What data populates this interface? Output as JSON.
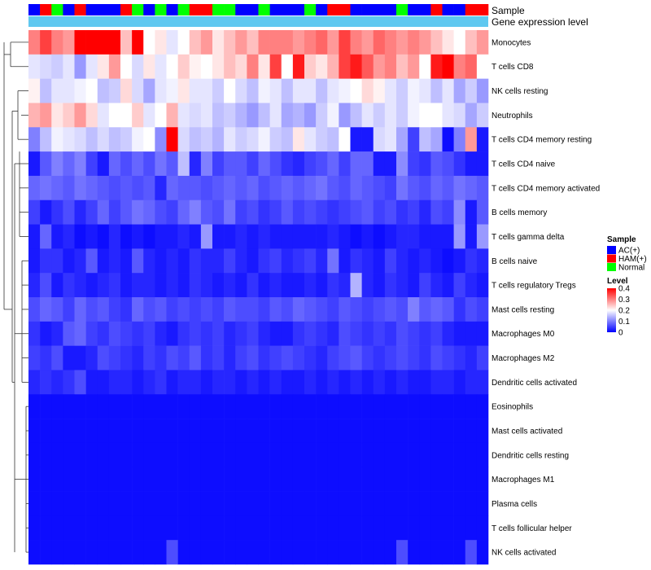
{
  "chart_data": {
    "type": "heatmap",
    "annotation_labels": {
      "sample": "Sample",
      "gene_expression": "Gene expression level"
    },
    "rows": [
      "Monocytes",
      "T cells CD8",
      "NK cells resting",
      "Neutrophils",
      "T cells CD4 memory resting",
      "T cells CD4 naive",
      "T cells CD4 memory activated",
      "B cells memory",
      "T cells gamma delta",
      "B cells naive",
      "T cells regulatory  Tregs",
      "Mast cells resting",
      "Macrophages M0",
      "Macrophages M2",
      "Dendritic cells activated",
      "Eosinophils",
      "Mast cells activated",
      "Dendritic cells resting",
      "Macrophages M1",
      "Plasma cells",
      "T cells follicular helper",
      "NK cells activated"
    ],
    "sample_groups": [
      "AC",
      "HAM",
      "Normal",
      "AC",
      "HAM",
      "AC",
      "AC",
      "AC",
      "HAM",
      "Normal",
      "AC",
      "Normal",
      "AC",
      "Normal",
      "HAM",
      "HAM",
      "Normal",
      "Normal",
      "AC",
      "AC",
      "Normal",
      "AC",
      "AC",
      "AC",
      "Normal",
      "AC",
      "HAM",
      "HAM",
      "AC",
      "AC",
      "AC",
      "AC",
      "Normal",
      "AC",
      "AC",
      "HAM",
      "AC",
      "AC",
      "HAM",
      "HAM"
    ],
    "values": [
      [
        0.3,
        0.35,
        0.3,
        0.28,
        0.4,
        0.4,
        0.4,
        0.4,
        0.25,
        0.4,
        0.2,
        0.22,
        0.18,
        0.2,
        0.25,
        0.28,
        0.22,
        0.25,
        0.28,
        0.25,
        0.3,
        0.3,
        0.3,
        0.28,
        0.3,
        0.32,
        0.28,
        0.35,
        0.3,
        0.28,
        0.32,
        0.3,
        0.28,
        0.3,
        0.28,
        0.25,
        0.22,
        0.2,
        0.25,
        0.28
      ],
      [
        0.18,
        0.17,
        0.16,
        0.18,
        0.12,
        0.18,
        0.22,
        0.28,
        0.2,
        0.17,
        0.22,
        0.18,
        0.2,
        0.24,
        0.21,
        0.2,
        0.22,
        0.25,
        0.23,
        0.3,
        0.22,
        0.35,
        0.2,
        0.38,
        0.24,
        0.22,
        0.26,
        0.35,
        0.38,
        0.33,
        0.28,
        0.3,
        0.25,
        0.28,
        0.2,
        0.38,
        0.4,
        0.3,
        0.32,
        0.2
      ],
      [
        0.21,
        0.15,
        0.18,
        0.18,
        0.19,
        0.2,
        0.15,
        0.16,
        0.23,
        0.17,
        0.13,
        0.18,
        0.19,
        0.22,
        0.18,
        0.18,
        0.16,
        0.2,
        0.17,
        0.15,
        0.19,
        0.18,
        0.15,
        0.18,
        0.18,
        0.15,
        0.18,
        0.19,
        0.2,
        0.23,
        0.21,
        0.18,
        0.16,
        0.19,
        0.18,
        0.15,
        0.18,
        0.13,
        0.16,
        0.12
      ],
      [
        0.26,
        0.28,
        0.22,
        0.24,
        0.28,
        0.23,
        0.18,
        0.2,
        0.2,
        0.24,
        0.18,
        0.2,
        0.26,
        0.18,
        0.17,
        0.18,
        0.15,
        0.16,
        0.14,
        0.12,
        0.15,
        0.18,
        0.13,
        0.14,
        0.12,
        0.16,
        0.19,
        0.12,
        0.15,
        0.18,
        0.16,
        0.18,
        0.16,
        0.19,
        0.2,
        0.2,
        0.18,
        0.17,
        0.13,
        0.16
      ],
      [
        0.1,
        0.15,
        0.19,
        0.18,
        0.17,
        0.15,
        0.17,
        0.15,
        0.16,
        0.19,
        0.2,
        0.11,
        0.4,
        0.17,
        0.15,
        0.16,
        0.14,
        0.18,
        0.16,
        0.17,
        0.19,
        0.16,
        0.15,
        0.22,
        0.18,
        0.16,
        0.15,
        0.2,
        0.02,
        0.02,
        0.17,
        0.18,
        0.13,
        0.05,
        0.15,
        0.13,
        0.01,
        0.1,
        0.28,
        0.02
      ],
      [
        0.02,
        0.07,
        0.1,
        0.08,
        0.1,
        0.05,
        0.02,
        0.08,
        0.06,
        0.08,
        0.06,
        0.09,
        0.07,
        0.15,
        0.03,
        0.1,
        0.05,
        0.07,
        0.07,
        0.05,
        0.08,
        0.06,
        0.04,
        0.03,
        0.05,
        0.06,
        0.08,
        0.05,
        0.08,
        0.08,
        0.02,
        0.02,
        0.11,
        0.05,
        0.04,
        0.07,
        0.06,
        0.04,
        0.02,
        0.02
      ],
      [
        0.08,
        0.09,
        0.08,
        0.07,
        0.09,
        0.08,
        0.07,
        0.06,
        0.07,
        0.06,
        0.07,
        0.03,
        0.08,
        0.07,
        0.07,
        0.06,
        0.07,
        0.08,
        0.07,
        0.08,
        0.06,
        0.07,
        0.08,
        0.07,
        0.08,
        0.09,
        0.07,
        0.06,
        0.08,
        0.07,
        0.06,
        0.05,
        0.09,
        0.07,
        0.06,
        0.08,
        0.07,
        0.09,
        0.08,
        0.07
      ],
      [
        0.05,
        0.02,
        0.04,
        0.06,
        0.03,
        0.05,
        0.08,
        0.05,
        0.07,
        0.09,
        0.08,
        0.06,
        0.05,
        0.08,
        0.1,
        0.07,
        0.06,
        0.09,
        0.05,
        0.06,
        0.04,
        0.05,
        0.07,
        0.05,
        0.06,
        0.05,
        0.04,
        0.05,
        0.06,
        0.07,
        0.05,
        0.06,
        0.04,
        0.05,
        0.03,
        0.06,
        0.05,
        0.11,
        0.02,
        0.07
      ],
      [
        0.02,
        0.08,
        0.02,
        0.03,
        0.01,
        0.02,
        0.01,
        0.03,
        0.01,
        0.02,
        0.01,
        0.02,
        0.02,
        0.03,
        0.02,
        0.12,
        0.02,
        0.02,
        0.03,
        0.02,
        0.03,
        0.02,
        0.02,
        0.02,
        0.02,
        0.02,
        0.03,
        0.02,
        0.01,
        0.02,
        0.01,
        0.02,
        0.03,
        0.03,
        0.02,
        0.02,
        0.02,
        0.12,
        0.02,
        0.12
      ],
      [
        0.02,
        0.04,
        0.04,
        0.02,
        0.03,
        0.07,
        0.02,
        0.03,
        0.02,
        0.07,
        0.03,
        0.02,
        0.03,
        0.02,
        0.04,
        0.03,
        0.03,
        0.05,
        0.03,
        0.02,
        0.04,
        0.05,
        0.03,
        0.04,
        0.05,
        0.03,
        0.09,
        0.02,
        0.04,
        0.03,
        0.02,
        0.05,
        0.03,
        0.02,
        0.03,
        0.02,
        0.01,
        0.02,
        0.04,
        0.03
      ],
      [
        0.03,
        0.06,
        0.02,
        0.04,
        0.03,
        0.02,
        0.03,
        0.04,
        0.02,
        0.03,
        0.03,
        0.02,
        0.03,
        0.02,
        0.04,
        0.03,
        0.02,
        0.03,
        0.02,
        0.04,
        0.02,
        0.03,
        0.02,
        0.02,
        0.03,
        0.02,
        0.04,
        0.03,
        0.14,
        0.03,
        0.02,
        0.04,
        0.03,
        0.02,
        0.05,
        0.03,
        0.02,
        0.05,
        0.03,
        0.02
      ],
      [
        0.06,
        0.08,
        0.07,
        0.05,
        0.08,
        0.06,
        0.07,
        0.05,
        0.04,
        0.08,
        0.06,
        0.07,
        0.05,
        0.06,
        0.05,
        0.06,
        0.05,
        0.07,
        0.06,
        0.06,
        0.05,
        0.07,
        0.06,
        0.08,
        0.07,
        0.06,
        0.05,
        0.07,
        0.06,
        0.05,
        0.06,
        0.07,
        0.06,
        0.1,
        0.07,
        0.08,
        0.07,
        0.04,
        0.06,
        0.05
      ],
      [
        0.04,
        0.02,
        0.03,
        0.07,
        0.08,
        0.05,
        0.04,
        0.06,
        0.05,
        0.04,
        0.05,
        0.03,
        0.02,
        0.04,
        0.05,
        0.04,
        0.05,
        0.03,
        0.04,
        0.05,
        0.03,
        0.02,
        0.02,
        0.04,
        0.05,
        0.04,
        0.03,
        0.06,
        0.05,
        0.04,
        0.05,
        0.04,
        0.06,
        0.05,
        0.04,
        0.05,
        0.03,
        0.02,
        0.02,
        0.02
      ],
      [
        0.05,
        0.04,
        0.06,
        0.02,
        0.02,
        0.03,
        0.06,
        0.05,
        0.04,
        0.03,
        0.05,
        0.04,
        0.06,
        0.05,
        0.07,
        0.04,
        0.05,
        0.03,
        0.05,
        0.06,
        0.04,
        0.05,
        0.06,
        0.05,
        0.04,
        0.03,
        0.05,
        0.06,
        0.07,
        0.05,
        0.04,
        0.05,
        0.06,
        0.05,
        0.04,
        0.06,
        0.05,
        0.04,
        0.03,
        0.05
      ],
      [
        0.03,
        0.04,
        0.03,
        0.04,
        0.06,
        0.02,
        0.02,
        0.03,
        0.03,
        0.02,
        0.03,
        0.04,
        0.02,
        0.03,
        0.03,
        0.02,
        0.03,
        0.03,
        0.02,
        0.03,
        0.02,
        0.03,
        0.02,
        0.02,
        0.03,
        0.02,
        0.03,
        0.02,
        0.03,
        0.02,
        0.03,
        0.02,
        0.03,
        0.02,
        0.02,
        0.03,
        0.03,
        0.02,
        0.03,
        0.03
      ],
      [
        0.01,
        0.01,
        0.01,
        0.01,
        0.01,
        0.01,
        0.01,
        0.01,
        0.01,
        0.01,
        0.01,
        0.01,
        0.01,
        0.01,
        0.01,
        0.01,
        0.01,
        0.01,
        0.01,
        0.01,
        0.01,
        0.01,
        0.01,
        0.01,
        0.01,
        0.01,
        0.01,
        0.01,
        0.01,
        0.01,
        0.01,
        0.01,
        0.01,
        0.01,
        0.01,
        0.01,
        0.01,
        0.01,
        0.01,
        0.01
      ],
      [
        0.01,
        0.01,
        0.01,
        0.01,
        0.01,
        0.01,
        0.01,
        0.01,
        0.01,
        0.01,
        0.01,
        0.01,
        0.01,
        0.01,
        0.01,
        0.01,
        0.01,
        0.01,
        0.01,
        0.01,
        0.01,
        0.01,
        0.01,
        0.01,
        0.01,
        0.01,
        0.01,
        0.01,
        0.01,
        0.01,
        0.01,
        0.01,
        0.01,
        0.01,
        0.01,
        0.01,
        0.01,
        0.01,
        0.01,
        0.01
      ],
      [
        0.01,
        0.01,
        0.01,
        0.01,
        0.01,
        0.01,
        0.01,
        0.01,
        0.01,
        0.01,
        0.01,
        0.01,
        0.01,
        0.01,
        0.01,
        0.01,
        0.01,
        0.01,
        0.01,
        0.01,
        0.01,
        0.01,
        0.01,
        0.01,
        0.01,
        0.01,
        0.01,
        0.01,
        0.01,
        0.01,
        0.01,
        0.01,
        0.01,
        0.01,
        0.01,
        0.01,
        0.01,
        0.01,
        0.01,
        0.01
      ],
      [
        0.01,
        0.01,
        0.01,
        0.01,
        0.01,
        0.01,
        0.01,
        0.01,
        0.01,
        0.01,
        0.01,
        0.01,
        0.01,
        0.01,
        0.01,
        0.01,
        0.01,
        0.01,
        0.01,
        0.01,
        0.01,
        0.01,
        0.01,
        0.01,
        0.01,
        0.01,
        0.01,
        0.01,
        0.01,
        0.01,
        0.01,
        0.01,
        0.01,
        0.01,
        0.01,
        0.01,
        0.01,
        0.01,
        0.01,
        0.01
      ],
      [
        0.01,
        0.01,
        0.01,
        0.01,
        0.01,
        0.01,
        0.01,
        0.01,
        0.01,
        0.01,
        0.01,
        0.01,
        0.01,
        0.01,
        0.01,
        0.01,
        0.01,
        0.01,
        0.01,
        0.01,
        0.01,
        0.01,
        0.01,
        0.01,
        0.01,
        0.01,
        0.01,
        0.01,
        0.01,
        0.01,
        0.01,
        0.01,
        0.01,
        0.01,
        0.01,
        0.01,
        0.01,
        0.01,
        0.01,
        0.01
      ],
      [
        0.01,
        0.01,
        0.01,
        0.01,
        0.01,
        0.01,
        0.01,
        0.01,
        0.01,
        0.01,
        0.01,
        0.01,
        0.01,
        0.01,
        0.01,
        0.01,
        0.01,
        0.01,
        0.01,
        0.01,
        0.01,
        0.01,
        0.01,
        0.01,
        0.01,
        0.01,
        0.01,
        0.01,
        0.01,
        0.01,
        0.01,
        0.01,
        0.01,
        0.01,
        0.01,
        0.01,
        0.01,
        0.01,
        0.01,
        0.01
      ],
      [
        0.01,
        0.01,
        0.01,
        0.01,
        0.01,
        0.01,
        0.01,
        0.01,
        0.01,
        0.01,
        0.01,
        0.01,
        0.06,
        0.01,
        0.01,
        0.01,
        0.01,
        0.01,
        0.01,
        0.01,
        0.01,
        0.01,
        0.01,
        0.01,
        0.01,
        0.01,
        0.01,
        0.01,
        0.01,
        0.01,
        0.01,
        0.01,
        0.06,
        0.01,
        0.01,
        0.01,
        0.01,
        0.01,
        0.06,
        0.01
      ]
    ],
    "legend": {
      "sample_title": "Sample",
      "sample_items": [
        {
          "key": "AC",
          "label": "AC(+)",
          "color": "#0000FF"
        },
        {
          "key": "HAM",
          "label": "HAM(+)",
          "color": "#FF0000"
        },
        {
          "key": "Normal",
          "label": "Normal",
          "color": "#00FF00"
        }
      ],
      "level_title": "Level",
      "level_ticks": [
        "0.4",
        "0.3",
        "0.2",
        "0.1",
        "0"
      ],
      "level_tick_values": [
        0.4,
        0.3,
        0.2,
        0.1,
        0.0
      ],
      "level_range": [
        0,
        0.4
      ]
    },
    "colors": {
      "low": "#0000FF",
      "mid": "#FFFFFF",
      "high": "#FF0000",
      "gene_expression_bar": "#5FC8F0",
      "dendrogram": "#333333"
    }
  }
}
